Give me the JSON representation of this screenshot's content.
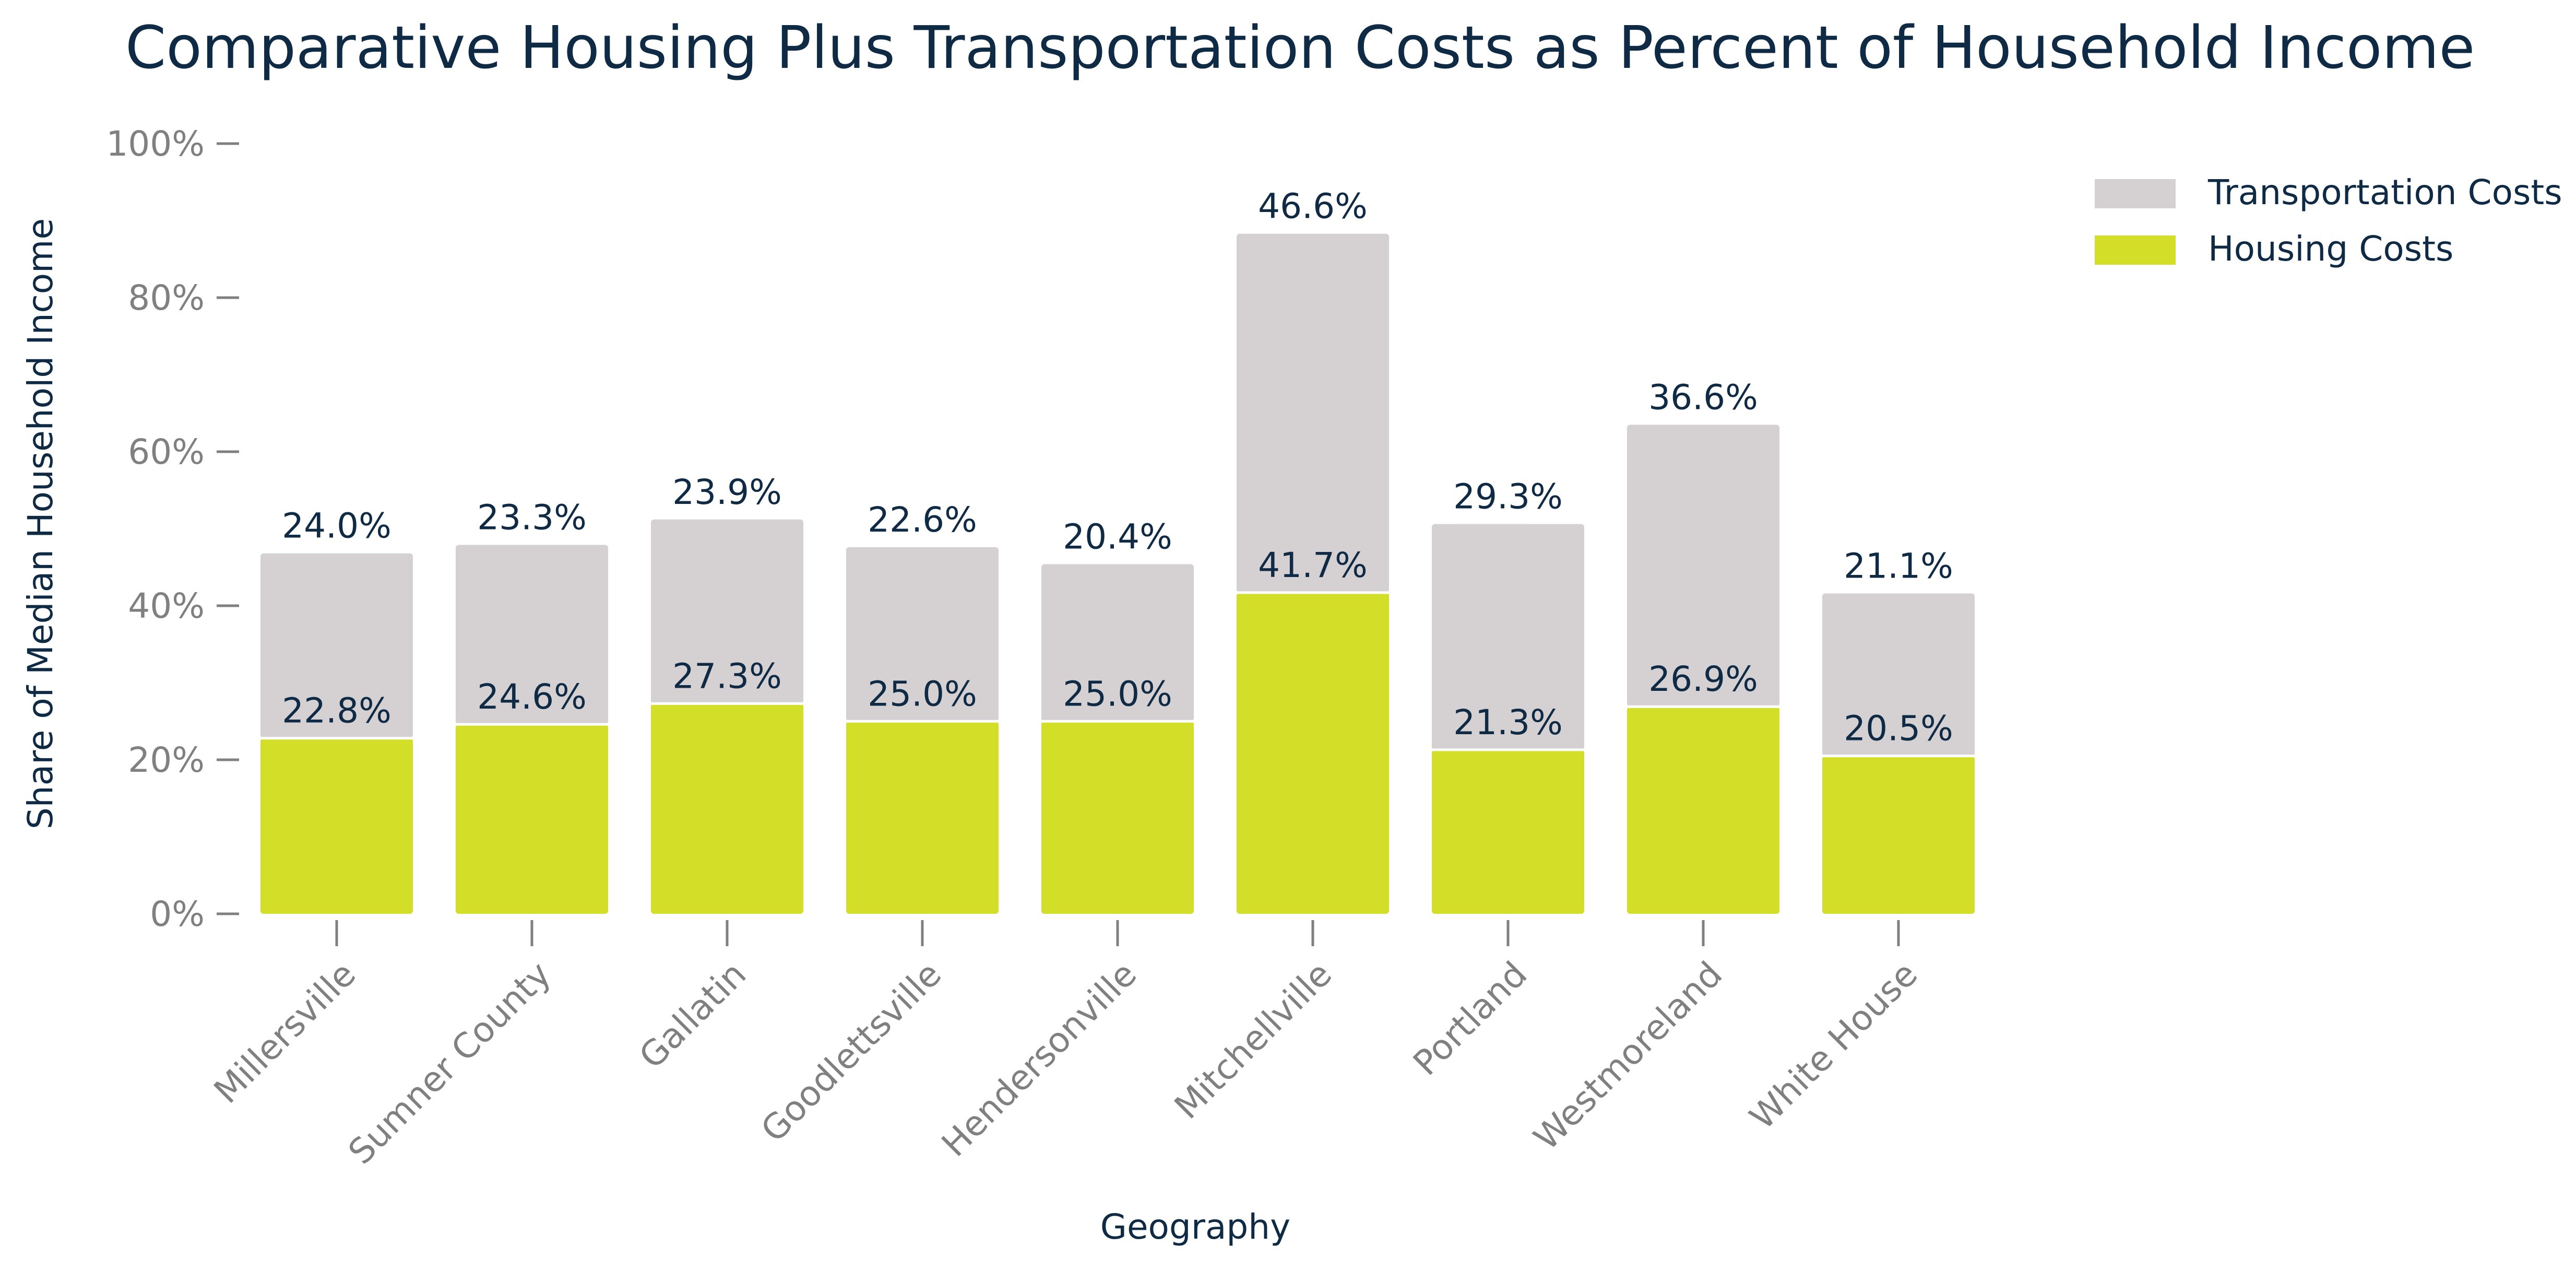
{
  "chart_data": {
    "type": "bar",
    "stacked": true,
    "title": "Comparative Housing Plus Transportation Costs as Percent of Household Income",
    "xlabel": "Geography",
    "ylabel": "Share of Median Household Income",
    "ylim": [
      0,
      100
    ],
    "yticks": [
      "0%",
      "20%",
      "40%",
      "60%",
      "80%",
      "100%"
    ],
    "categories": [
      "Millersville",
      "Sumner County",
      "Gallatin",
      "Goodlettsville",
      "Hendersonville",
      "Mitchellville",
      "Portland",
      "Westmoreland",
      "White House"
    ],
    "series": [
      {
        "name": "Housing Costs",
        "color": "#d2de27",
        "values": [
          22.8,
          24.6,
          27.3,
          25.0,
          25.0,
          41.7,
          21.3,
          26.9,
          20.5
        ],
        "labels": [
          "22.8%",
          "24.6%",
          "27.3%",
          "25.0%",
          "25.0%",
          "41.7%",
          "21.3%",
          "26.9%",
          "20.5%"
        ]
      },
      {
        "name": "Transportation Costs",
        "color": "#d5d0d2",
        "values": [
          24.0,
          23.3,
          23.9,
          22.6,
          20.4,
          46.6,
          29.3,
          36.6,
          21.1
        ],
        "labels": [
          "24.0%",
          "23.3%",
          "23.9%",
          "22.6%",
          "20.4%",
          "46.6%",
          "29.3%",
          "36.6%",
          "21.1%"
        ]
      }
    ],
    "legend": {
      "position": "top-right",
      "order": [
        "Transportation Costs",
        "Housing Costs"
      ]
    },
    "grid": false
  }
}
